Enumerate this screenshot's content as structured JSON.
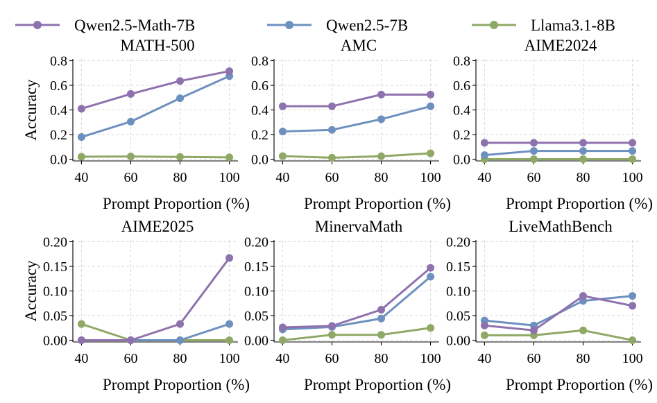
{
  "chart_data": {
    "type": "line",
    "legend": {
      "placement": "top",
      "entries": [
        {
          "name": "Qwen2.5-Math-7B",
          "color": "#8E72AE"
        },
        {
          "name": "Qwen2.5-7B",
          "color": "#6D90BF"
        },
        {
          "name": "Llama3.1-8B",
          "color": "#8FA865"
        }
      ]
    },
    "x_label": "Prompt Proportion (%)",
    "y_label": "Accuracy",
    "x": [
      40,
      60,
      80,
      100
    ],
    "x_ticks": [
      "40",
      "60",
      "80",
      "100"
    ],
    "grid": true,
    "panels": [
      {
        "title": "MATH-500",
        "ylim": [
          0,
          0.8
        ],
        "y_ticks": [
          "0.0",
          "0.2",
          "0.4",
          "0.6",
          "0.8"
        ],
        "y_tick_values": [
          0,
          0.2,
          0.4,
          0.6,
          0.8
        ],
        "show_ylabel": true,
        "series": [
          {
            "name": "Qwen2.5-Math-7B",
            "values": [
              0.41,
              0.53,
              0.635,
              0.715
            ]
          },
          {
            "name": "Qwen2.5-7B",
            "values": [
              0.18,
              0.305,
              0.495,
              0.675
            ]
          },
          {
            "name": "Llama3.1-8B",
            "values": [
              0.02,
              0.022,
              0.018,
              0.015
            ]
          }
        ]
      },
      {
        "title": "AMC",
        "ylim": [
          0,
          0.8
        ],
        "y_ticks": [
          "0.0",
          "0.2",
          "0.4",
          "0.6",
          "0.8"
        ],
        "y_tick_values": [
          0,
          0.2,
          0.4,
          0.6,
          0.8
        ],
        "show_ylabel": false,
        "series": [
          {
            "name": "Qwen2.5-Math-7B",
            "values": [
              0.43,
              0.43,
              0.525,
              0.525
            ]
          },
          {
            "name": "Qwen2.5-7B",
            "values": [
              0.225,
              0.238,
              0.325,
              0.43
            ]
          },
          {
            "name": "Llama3.1-8B",
            "values": [
              0.025,
              0.012,
              0.024,
              0.048
            ]
          }
        ]
      },
      {
        "title": "AIME2024",
        "ylim": [
          0,
          0.8
        ],
        "y_ticks": [
          "0.0",
          "0.2",
          "0.4",
          "0.6",
          "0.8"
        ],
        "y_tick_values": [
          0,
          0.2,
          0.4,
          0.6,
          0.8
        ],
        "show_ylabel": false,
        "series": [
          {
            "name": "Qwen2.5-Math-7B",
            "values": [
              0.133,
              0.133,
              0.133,
              0.133
            ]
          },
          {
            "name": "Qwen2.5-7B",
            "values": [
              0.033,
              0.067,
              0.067,
              0.067
            ]
          },
          {
            "name": "Llama3.1-8B",
            "values": [
              0.0,
              0.0,
              0.0,
              0.0
            ]
          }
        ]
      },
      {
        "title": "AIME2025",
        "ylim": [
          0,
          0.2
        ],
        "y_ticks": [
          "0.00",
          "0.05",
          "0.10",
          "0.15",
          "0.20"
        ],
        "y_tick_values": [
          0,
          0.05,
          0.1,
          0.15,
          0.2
        ],
        "show_ylabel": true,
        "series": [
          {
            "name": "Qwen2.5-Math-7B",
            "values": [
              0.0,
              0.0,
              0.033,
              0.167
            ]
          },
          {
            "name": "Qwen2.5-7B",
            "values": [
              0.0,
              0.0,
              0.0,
              0.033
            ]
          },
          {
            "name": "Llama3.1-8B",
            "values": [
              0.033,
              0.0,
              0.0,
              0.0
            ]
          }
        ]
      },
      {
        "title": "MinervaMath",
        "ylim": [
          0,
          0.2
        ],
        "y_ticks": [
          "0.00",
          "0.05",
          "0.10",
          "0.15",
          "0.20"
        ],
        "y_tick_values": [
          0,
          0.05,
          0.1,
          0.15,
          0.2
        ],
        "show_ylabel": false,
        "series": [
          {
            "name": "Qwen2.5-Math-7B",
            "values": [
              0.026,
              0.029,
              0.062,
              0.147
            ]
          },
          {
            "name": "Qwen2.5-7B",
            "values": [
              0.022,
              0.027,
              0.044,
              0.129
            ]
          },
          {
            "name": "Llama3.1-8B",
            "values": [
              0.0,
              0.011,
              0.011,
              0.025
            ]
          }
        ]
      },
      {
        "title": "LiveMathBench",
        "ylim": [
          0,
          0.2
        ],
        "y_ticks": [
          "0.00",
          "0.05",
          "0.10",
          "0.15",
          "0.20"
        ],
        "y_tick_values": [
          0,
          0.05,
          0.1,
          0.15,
          0.2
        ],
        "show_ylabel": false,
        "series": [
          {
            "name": "Qwen2.5-Math-7B",
            "values": [
              0.03,
              0.02,
              0.09,
              0.07
            ]
          },
          {
            "name": "Qwen2.5-7B",
            "values": [
              0.04,
              0.03,
              0.08,
              0.09
            ]
          },
          {
            "name": "Llama3.1-8B",
            "values": [
              0.01,
              0.01,
              0.02,
              0.0
            ]
          }
        ]
      }
    ]
  }
}
